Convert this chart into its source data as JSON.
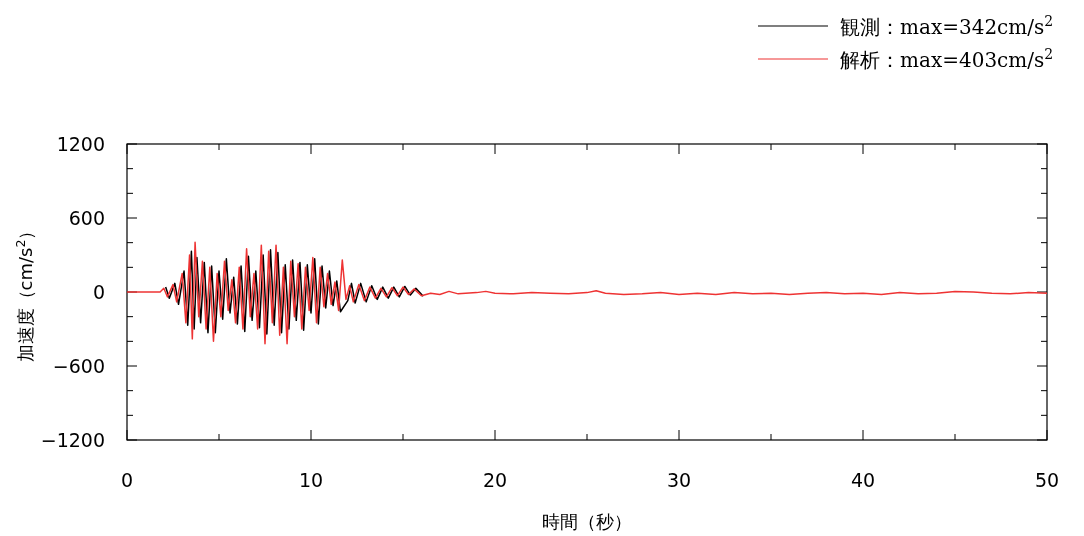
{
  "chart_data": {
    "type": "line",
    "xlabel": "時間（秒）",
    "ylabel": "加速度（cm/s$^{2}$）",
    "legend": "top right",
    "grid": false,
    "line_style": "solid",
    "marker": "none",
    "xlim": [
      0,
      50
    ],
    "ylim": [
      -1200,
      1200
    ],
    "xticks": [
      0,
      {
        "value": 5,
        "label": null
      },
      10,
      {
        "value": 15,
        "label": null
      },
      20,
      {
        "value": 25,
        "label": null
      },
      30,
      {
        "value": 35,
        "label": null
      },
      40,
      {
        "value": 45,
        "label": null
      },
      50
    ],
    "yticks": [
      -1200,
      {
        "value": -1000,
        "label": null
      },
      {
        "value": -800,
        "label": null
      },
      -600,
      {
        "value": -400,
        "label": null
      },
      {
        "value": -200,
        "label": null
      },
      0,
      {
        "value": 200,
        "label": null
      },
      {
        "value": 400,
        "label": null
      },
      600,
      {
        "value": 800,
        "label": null
      },
      {
        "value": 1000,
        "label": null
      },
      1200
    ],
    "series": [
      {
        "name": "観測：max=342cm/s$^{2}$",
        "color": "#000000",
        "x": [
          2.1,
          2.3,
          2.6,
          2.8,
          3.1,
          3.3,
          3.5,
          3.65,
          3.8,
          4.0,
          4.2,
          4.4,
          4.6,
          4.8,
          5.0,
          5.2,
          5.4,
          5.6,
          5.8,
          6.0,
          6.2,
          6.4,
          6.6,
          6.8,
          7.0,
          7.2,
          7.4,
          7.6,
          7.8,
          8.0,
          8.2,
          8.4,
          8.6,
          8.8,
          9.0,
          9.2,
          9.4,
          9.6,
          9.8,
          10.0,
          10.2,
          10.4,
          10.6,
          10.8,
          11.0,
          11.2,
          11.4,
          11.6,
          12.0,
          12.2,
          12.4,
          12.7,
          13.0,
          13.3,
          13.6,
          13.9,
          14.2,
          14.5,
          14.8,
          15.1,
          15.4,
          15.7,
          16.1
        ],
        "values": [
          40,
          -50,
          70,
          -100,
          170,
          -270,
          330,
          -300,
          280,
          -250,
          240,
          -330,
          210,
          -330,
          170,
          -220,
          270,
          -170,
          120,
          -260,
          210,
          -320,
          290,
          -230,
          170,
          -290,
          300,
          -340,
          342,
          -270,
          320,
          -330,
          220,
          -300,
          260,
          -230,
          240,
          -310,
          220,
          -170,
          270,
          -260,
          210,
          -130,
          170,
          -110,
          90,
          -160,
          -70,
          70,
          -90,
          70,
          -80,
          50,
          -60,
          40,
          -50,
          40,
          -40,
          45,
          -25,
          30,
          -35
        ]
      },
      {
        "name": "解析：max=403cm/s$^{2}$",
        "color": "#ee3333",
        "x": [
          0,
          1.8,
          2.0,
          2.2,
          2.5,
          2.7,
          3.0,
          3.2,
          3.4,
          3.55,
          3.7,
          3.9,
          4.1,
          4.3,
          4.5,
          4.7,
          4.9,
          5.1,
          5.3,
          5.5,
          5.7,
          5.9,
          6.1,
          6.3,
          6.5,
          6.7,
          6.9,
          7.1,
          7.3,
          7.5,
          7.7,
          7.9,
          8.1,
          8.3,
          8.5,
          8.7,
          8.9,
          9.1,
          9.3,
          9.5,
          9.7,
          9.9,
          10.1,
          10.3,
          10.5,
          10.7,
          10.9,
          11.1,
          11.3,
          11.5,
          11.7,
          11.9,
          12.1,
          12.3,
          12.6,
          12.9,
          13.2,
          13.5,
          13.8,
          14.1,
          14.4,
          14.7,
          15.0,
          15.3,
          15.6,
          16.0,
          16.5,
          17,
          17.5,
          18,
          19,
          19.5,
          20,
          21,
          22,
          23,
          24,
          25,
          25.5,
          26,
          27,
          28,
          29,
          30,
          31,
          32,
          33,
          34,
          35,
          36,
          37,
          38,
          39,
          40,
          41,
          42,
          43,
          44,
          45,
          46,
          47,
          48,
          49,
          50
        ],
        "values": [
          0,
          0,
          30,
          -40,
          60,
          -80,
          150,
          -250,
          300,
          -380,
          403,
          -200,
          250,
          -300,
          200,
          -400,
          150,
          -200,
          250,
          -150,
          100,
          -250,
          200,
          -300,
          350,
          -200,
          150,
          -300,
          380,
          -420,
          330,
          -250,
          380,
          -350,
          200,
          -420,
          250,
          -200,
          230,
          -300,
          200,
          -150,
          280,
          -250,
          200,
          -120,
          150,
          -100,
          80,
          -150,
          260,
          -60,
          50,
          -80,
          60,
          -70,
          40,
          -50,
          30,
          -40,
          35,
          -30,
          40,
          -20,
          25,
          -30,
          -10,
          -20,
          5,
          -15,
          -5,
          5,
          -10,
          -15,
          -5,
          -10,
          -15,
          -5,
          10,
          -10,
          -20,
          -15,
          -5,
          -20,
          -10,
          -20,
          -5,
          -15,
          -10,
          -20,
          -10,
          -5,
          -15,
          -10,
          -20,
          -5,
          -15,
          -10,
          5,
          0,
          -10,
          -15,
          -5,
          -10
        ]
      }
    ]
  }
}
